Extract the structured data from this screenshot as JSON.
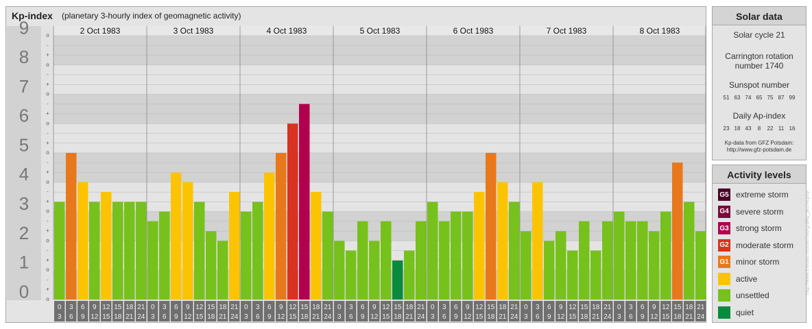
{
  "header": {
    "title": "Kp-index",
    "subtitle": "(planetary 3-hourly index of geomagnetic activity)"
  },
  "chart_data": {
    "type": "bar",
    "title": "Kp-index",
    "subtitle": "(planetary 3-hourly index of geomagnetic activity)",
    "y_ticks": [
      "0",
      "1",
      "2",
      "3",
      "4",
      "5",
      "6",
      "7",
      "8",
      "9"
    ],
    "y_minor_labels": [
      "o",
      "+",
      "-",
      "o",
      "+",
      "-",
      "o",
      "+",
      "-",
      "o",
      "+",
      "-",
      "o",
      "+",
      "-",
      "o",
      "+",
      "-",
      "o",
      "+",
      "-",
      "o",
      "+",
      "-",
      "o",
      "+",
      "-",
      "o"
    ],
    "ylim": [
      0,
      9
    ],
    "days": [
      "2 Oct 1983",
      "3 Oct 1983",
      "4 Oct 1983",
      "5 Oct 1983",
      "6 Oct 1983",
      "7 Oct 1983",
      "8 Oct 1983"
    ],
    "interval_start": [
      "0",
      "3",
      "6",
      "9",
      "12",
      "15",
      "18",
      "21"
    ],
    "interval_end": [
      "3",
      "6",
      "9",
      "12",
      "15",
      "18",
      "21",
      "24"
    ],
    "values": [
      3.33,
      5.0,
      4.0,
      3.33,
      3.67,
      3.33,
      3.33,
      3.33,
      2.67,
      3.0,
      4.33,
      4.0,
      3.33,
      2.33,
      2.0,
      3.67,
      3.0,
      3.33,
      4.33,
      5.0,
      6.0,
      6.67,
      3.67,
      3.0,
      2.0,
      1.67,
      2.67,
      2.0,
      2.67,
      1.33,
      1.67,
      2.67,
      3.33,
      2.67,
      3.0,
      3.0,
      3.67,
      5.0,
      4.0,
      3.33,
      2.33,
      4.0,
      2.0,
      2.33,
      1.67,
      2.67,
      1.67,
      2.67,
      3.0,
      2.67,
      2.67,
      2.33,
      3.0,
      4.67,
      3.33,
      2.33
    ],
    "colors": {
      "quiet": "#0a8a3c",
      "unsettled": "#77c11c",
      "active": "#fcc400",
      "G1": "#e8781c",
      "G2": "#d83220",
      "G3": "#b0004e",
      "G4": "#7a0a3c",
      "G5": "#4a0028"
    },
    "grid": true
  },
  "solar": {
    "title": "Solar data",
    "cycle": "Solar cycle 21",
    "carrington_line1": "Carrington rotation",
    "carrington_line2": "number 1740",
    "sunspot_title": "Sunspot number",
    "sunspot_values": [
      "51",
      "63",
      "74",
      "65",
      "75",
      "87",
      "99"
    ],
    "ap_title": "Daily Ap-index",
    "ap_values": [
      "23",
      "18",
      "43",
      "8",
      "22",
      "11",
      "16"
    ],
    "source_line1": "Kp-data from GFZ Potsdam:",
    "source_line2": "http://www.gfz-potsdam.de"
  },
  "activity": {
    "title": "Activity levels",
    "items": [
      {
        "badge": "G5",
        "label": "extreme storm",
        "color": "#4a0028"
      },
      {
        "badge": "G4",
        "label": "severe storm",
        "color": "#7a0a3c"
      },
      {
        "badge": "G3",
        "label": "strong storm",
        "color": "#b0004e"
      },
      {
        "badge": "G2",
        "label": "moderate storm",
        "color": "#d83220"
      },
      {
        "badge": "G1",
        "label": "minor storm",
        "color": "#e8781c"
      },
      {
        "badge": "",
        "label": "active",
        "color": "#fcc400"
      },
      {
        "badge": "",
        "label": "unsettled",
        "color": "#77c11c"
      },
      {
        "badge": "",
        "label": "quiet",
        "color": "#0a8a3c"
      }
    ]
  },
  "watermark": "http://www.theusen.eu/ster/sturgra/kp_archiv.php"
}
